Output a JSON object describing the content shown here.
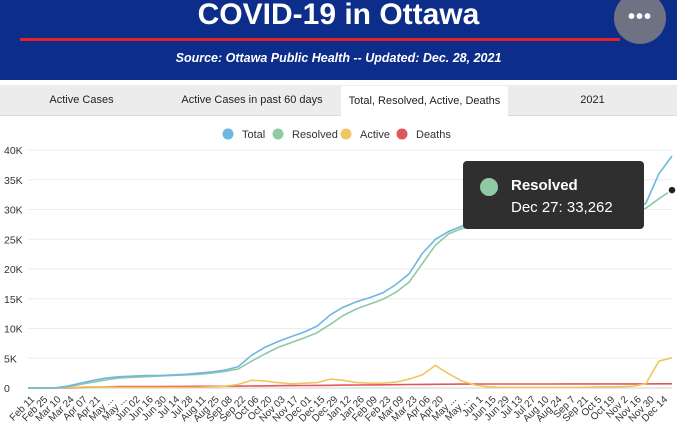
{
  "header": {
    "title": "COVID-19 in Ottawa",
    "subtitle": "Source:  Ottawa Public Health -- Updated:  Dec. 28, 2021",
    "menu_icon": "more-horizontal-icon",
    "menu_glyph": "•••"
  },
  "tabs": [
    {
      "label": "Active Cases"
    },
    {
      "label": "Active Cases in past 60 days"
    },
    {
      "label": "Total, Resolved, Active, Deaths",
      "selected": true
    },
    {
      "label": "2021"
    }
  ],
  "colors": {
    "total": "#6fb6e0",
    "resolved": "#8fc9a5",
    "active": "#f1c661",
    "deaths": "#e0575b",
    "header_bg": "#0c2d8a",
    "accent_red": "#e0222a"
  },
  "tooltip": {
    "series": "Resolved",
    "label": "Dec 27: 33,262"
  },
  "chart_data": {
    "type": "line",
    "title": "",
    "xlabel": "",
    "ylabel": "",
    "ylim": [
      0,
      40000
    ],
    "grid": true,
    "legend_position": "top-center",
    "y_ticks": [
      "0",
      "5K",
      "10K",
      "15K",
      "20K",
      "25K",
      "30K",
      "35K",
      "40K"
    ],
    "x_tick_labels": [
      "Feb 11",
      "Feb 25",
      "Mar 10",
      "Mar 24",
      "Apr 07",
      "Apr 21",
      "May ...",
      "May ...",
      "Jun 02",
      "Jun 16",
      "Jun 30",
      "Jul 14",
      "Jul 28",
      "Aug 11",
      "Aug 25",
      "Sep 08",
      "Sep 22",
      "Oct 06",
      "Oct 20",
      "Nov 03",
      "Nov 17",
      "Dec 01",
      "Dec 15",
      "Dec 29",
      "Jan 12",
      "Jan 26",
      "Feb 09",
      "Feb 23",
      "Mar 09",
      "Mar 23",
      "Apr 06",
      "Apr 20",
      "May ...",
      "May ...",
      "Jun 1",
      "Jun 15",
      "Jun 29",
      "Jul 13",
      "Jul 27",
      "Aug 10",
      "Aug 24",
      "Sep 7",
      "Sep 21",
      "Oct 5",
      "Oct 19",
      "Nov 2",
      "Nov 16",
      "Nov 30",
      "Dec 14"
    ],
    "series": [
      {
        "name": "Total",
        "values": [
          0,
          0,
          0,
          300,
          800,
          1300,
          1700,
          1900,
          2000,
          2100,
          2100,
          2200,
          2300,
          2500,
          2700,
          3000,
          3600,
          5500,
          6800,
          7800,
          8600,
          9400,
          10400,
          12300,
          13600,
          14500,
          15200,
          16000,
          17400,
          19200,
          22600,
          25000,
          26300,
          27200,
          27600,
          27800,
          27800,
          27800,
          27800,
          27900,
          28100,
          28300,
          28500,
          28800,
          29100,
          29400,
          29800,
          31000,
          36000,
          39000
        ]
      },
      {
        "name": "Resolved",
        "values": [
          0,
          0,
          0,
          200,
          600,
          1000,
          1400,
          1700,
          1800,
          1900,
          2000,
          2100,
          2200,
          2300,
          2500,
          2800,
          3200,
          4500,
          5700,
          6800,
          7600,
          8400,
          9300,
          10700,
          12200,
          13300,
          14100,
          14900,
          16100,
          17800,
          20900,
          24000,
          25900,
          26800,
          27300,
          27500,
          27600,
          27600,
          27700,
          27700,
          28000,
          28200,
          28400,
          28600,
          28900,
          29200,
          29500,
          30200,
          31800,
          33262
        ]
      },
      {
        "name": "Active",
        "values": [
          0,
          0,
          0,
          100,
          150,
          200,
          150,
          100,
          100,
          100,
          100,
          100,
          100,
          120,
          200,
          300,
          600,
          1300,
          1200,
          900,
          700,
          800,
          900,
          1500,
          1300,
          900,
          800,
          800,
          1000,
          1500,
          2200,
          3800,
          2400,
          1200,
          500,
          200,
          100,
          100,
          100,
          100,
          100,
          100,
          100,
          150,
          200,
          200,
          300,
          700,
          4500,
          5100
        ]
      },
      {
        "name": "Deaths",
        "values": [
          0,
          0,
          0,
          20,
          80,
          150,
          200,
          240,
          250,
          255,
          260,
          265,
          270,
          280,
          290,
          300,
          320,
          340,
          360,
          380,
          400,
          420,
          440,
          460,
          480,
          500,
          520,
          540,
          560,
          580,
          600,
          620,
          640,
          650,
          660,
          665,
          670,
          672,
          675,
          678,
          680,
          682,
          684,
          686,
          688,
          690,
          692,
          695,
          700,
          705
        ]
      }
    ]
  }
}
